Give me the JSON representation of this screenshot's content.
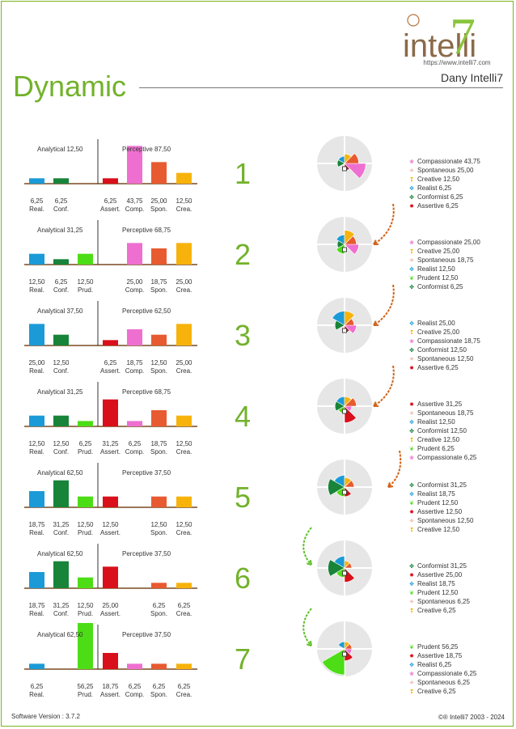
{
  "header": {
    "title": "Dynamic",
    "user": "Dany Intelli7",
    "logo_text": "intelli",
    "logo_seven": "7",
    "url": "https://www.intelli7.com"
  },
  "footer": {
    "version": "Software Version : 3.7.2",
    "copyright": "©® Intelli7 2003 - 2024"
  },
  "colors": {
    "Realist": "#1a9bd7",
    "Conformist": "#17843a",
    "Prudent": "#4ddd16",
    "Assertive": "#d90f1b",
    "Compassionate": "#ef6fd0",
    "Spontaneous": "#e85a30",
    "Creative": "#f7b30c",
    "accent": "#72b22b",
    "arrow_orange": "#d0631a",
    "arrow_green": "#5fbf26"
  },
  "icons": {
    "Realist": "realist-icon",
    "Conformist": "conformist-icon",
    "Prudent": "prudent-icon",
    "Assertive": "assertive-icon",
    "Compassionate": "compassionate-icon",
    "Spontaneous": "spontaneous-icon",
    "Creative": "creative-icon"
  },
  "chart_data": [
    {
      "step": "1",
      "type": "bar",
      "analytical": "Analytical 12,50",
      "perceptive": "Perceptive 87,50",
      "bars": [
        {
          "t": "Realist",
          "lbl": "Real.",
          "v": 6.25,
          "txt": "6,25"
        },
        {
          "t": "Conformist",
          "lbl": "Conf.",
          "v": 6.25,
          "txt": "6,25"
        },
        {
          "t": "Assertive",
          "lbl": "Assert.",
          "v": 6.25,
          "txt": "6,25"
        },
        {
          "t": "Compassionate",
          "lbl": "Comp.",
          "v": 43.75,
          "txt": "43,75"
        },
        {
          "t": "Spontaneous",
          "lbl": "Spon.",
          "v": 25.0,
          "txt": "25,00"
        },
        {
          "t": "Creative",
          "lbl": "Crea.",
          "v": 12.5,
          "txt": "12,50"
        }
      ],
      "legend": [
        {
          "t": "Compassionate",
          "text": "Compassionate 43,75"
        },
        {
          "t": "Spontaneous",
          "text": "Spontaneous 25,00"
        },
        {
          "t": "Creative",
          "text": "Creative 12,50"
        },
        {
          "t": "Realist",
          "text": "Realist 6,25"
        },
        {
          "t": "Conformist",
          "text": "Conformist 6,25"
        },
        {
          "t": "Assertive",
          "text": "Assertive 6,25"
        }
      ]
    },
    {
      "step": "2",
      "type": "bar",
      "analytical": "Analytical 31,25",
      "perceptive": "Perceptive 68,75",
      "bars": [
        {
          "t": "Realist",
          "lbl": "Real.",
          "v": 12.5,
          "txt": "12,50"
        },
        {
          "t": "Conformist",
          "lbl": "Conf.",
          "v": 6.25,
          "txt": "6,25"
        },
        {
          "t": "Prudent",
          "lbl": "Prud.",
          "v": 12.5,
          "txt": "12,50"
        },
        {
          "t": "Compassionate",
          "lbl": "Comp.",
          "v": 25.0,
          "txt": "25,00"
        },
        {
          "t": "Spontaneous",
          "lbl": "Spon.",
          "v": 18.75,
          "txt": "18,75"
        },
        {
          "t": "Creative",
          "lbl": "Crea.",
          "v": 25.0,
          "txt": "25,00"
        }
      ],
      "legend": [
        {
          "t": "Compassionate",
          "text": "Compassionate 25,00"
        },
        {
          "t": "Creative",
          "text": "Creative 25,00"
        },
        {
          "t": "Spontaneous",
          "text": "Spontaneous 18,75"
        },
        {
          "t": "Realist",
          "text": "Realist 12,50"
        },
        {
          "t": "Prudent",
          "text": "Prudent 12,50"
        },
        {
          "t": "Conformist",
          "text": "Conformist 6,25"
        }
      ]
    },
    {
      "step": "3",
      "type": "bar",
      "analytical": "Analytical 37,50",
      "perceptive": "Perceptive 62,50",
      "bars": [
        {
          "t": "Realist",
          "lbl": "Real.",
          "v": 25.0,
          "txt": "25,00"
        },
        {
          "t": "Conformist",
          "lbl": "Conf.",
          "v": 12.5,
          "txt": "12,50"
        },
        {
          "t": "Assertive",
          "lbl": "Assert.",
          "v": 6.25,
          "txt": "6,25"
        },
        {
          "t": "Compassionate",
          "lbl": "Comp.",
          "v": 18.75,
          "txt": "18,75"
        },
        {
          "t": "Spontaneous",
          "lbl": "Spon.",
          "v": 12.5,
          "txt": "12,50"
        },
        {
          "t": "Creative",
          "lbl": "Crea.",
          "v": 25.0,
          "txt": "25,00"
        }
      ],
      "legend": [
        {
          "t": "Realist",
          "text": "Realist 25,00"
        },
        {
          "t": "Creative",
          "text": "Creative 25,00"
        },
        {
          "t": "Compassionate",
          "text": "Compassionate 18,75"
        },
        {
          "t": "Conformist",
          "text": "Conformist 12,50"
        },
        {
          "t": "Spontaneous",
          "text": "Spontaneous 12,50"
        },
        {
          "t": "Assertive",
          "text": "Assertive 6,25"
        }
      ]
    },
    {
      "step": "4",
      "type": "bar",
      "analytical": "Analytical 31,25",
      "perceptive": "Perceptive 68,75",
      "bars": [
        {
          "t": "Realist",
          "lbl": "Real.",
          "v": 12.5,
          "txt": "12,50"
        },
        {
          "t": "Conformist",
          "lbl": "Conf.",
          "v": 12.5,
          "txt": "12,50"
        },
        {
          "t": "Prudent",
          "lbl": "Prud.",
          "v": 6.25,
          "txt": "6,25"
        },
        {
          "t": "Assertive",
          "lbl": "Assert.",
          "v": 31.25,
          "txt": "31,25"
        },
        {
          "t": "Compassionate",
          "lbl": "Comp.",
          "v": 6.25,
          "txt": "6,25"
        },
        {
          "t": "Spontaneous",
          "lbl": "Spon.",
          "v": 18.75,
          "txt": "18,75"
        },
        {
          "t": "Creative",
          "lbl": "Crea.",
          "v": 12.5,
          "txt": "12,50"
        }
      ],
      "legend": [
        {
          "t": "Assertive",
          "text": "Assertive 31,25"
        },
        {
          "t": "Spontaneous",
          "text": "Spontaneous 18,75"
        },
        {
          "t": "Realist",
          "text": "Realist 12,50"
        },
        {
          "t": "Conformist",
          "text": "Conformist 12,50"
        },
        {
          "t": "Creative",
          "text": "Creative 12,50"
        },
        {
          "t": "Prudent",
          "text": "Prudent 6,25"
        },
        {
          "t": "Compassionate",
          "text": "Compassionate 6,25"
        }
      ]
    },
    {
      "step": "5",
      "type": "bar",
      "analytical": "Analytical 62,50",
      "perceptive": "Perceptive 37,50",
      "bars": [
        {
          "t": "Realist",
          "lbl": "Real.",
          "v": 18.75,
          "txt": "18,75"
        },
        {
          "t": "Conformist",
          "lbl": "Conf.",
          "v": 31.25,
          "txt": "31,25"
        },
        {
          "t": "Prudent",
          "lbl": "Prud.",
          "v": 12.5,
          "txt": "12,50"
        },
        {
          "t": "Assertive",
          "lbl": "Assert.",
          "v": 12.5,
          "txt": "12,50"
        },
        {
          "t": "Spontaneous",
          "lbl": "Spon.",
          "v": 12.5,
          "txt": "12,50"
        },
        {
          "t": "Creative",
          "lbl": "Crea.",
          "v": 12.5,
          "txt": "12,50"
        }
      ],
      "legend": [
        {
          "t": "Conformist",
          "text": "Conformist 31,25"
        },
        {
          "t": "Realist",
          "text": "Realist 18,75"
        },
        {
          "t": "Prudent",
          "text": "Prudent 12,50"
        },
        {
          "t": "Assertive",
          "text": "Assertive 12,50"
        },
        {
          "t": "Spontaneous",
          "text": "Spontaneous 12,50"
        },
        {
          "t": "Creative",
          "text": "Creative 12,50"
        }
      ]
    },
    {
      "step": "6",
      "type": "bar",
      "analytical": "Analytical 62,50",
      "perceptive": "Perceptive 37,50",
      "bars": [
        {
          "t": "Realist",
          "lbl": "Real.",
          "v": 18.75,
          "txt": "18,75"
        },
        {
          "t": "Conformist",
          "lbl": "Conf.",
          "v": 31.25,
          "txt": "31,25"
        },
        {
          "t": "Prudent",
          "lbl": "Prud.",
          "v": 12.5,
          "txt": "12,50"
        },
        {
          "t": "Assertive",
          "lbl": "Assert.",
          "v": 25.0,
          "txt": "25,00"
        },
        {
          "t": "Spontaneous",
          "lbl": "Spon.",
          "v": 6.25,
          "txt": "6,25"
        },
        {
          "t": "Creative",
          "lbl": "Crea.",
          "v": 6.25,
          "txt": "6,25"
        }
      ],
      "legend": [
        {
          "t": "Conformist",
          "text": "Conformist 31,25"
        },
        {
          "t": "Assertive",
          "text": "Assertive 25,00"
        },
        {
          "t": "Realist",
          "text": "Realist 18,75"
        },
        {
          "t": "Prudent",
          "text": "Prudent 12,50"
        },
        {
          "t": "Spontaneous",
          "text": "Spontaneous 6,25"
        },
        {
          "t": "Creative",
          "text": "Creative 6,25"
        }
      ]
    },
    {
      "step": "7",
      "type": "bar",
      "analytical": "Analytical 62,50",
      "perceptive": "Perceptive 37,50",
      "bars": [
        {
          "t": "Realist",
          "lbl": "Real.",
          "v": 6.25,
          "txt": "6,25"
        },
        {
          "t": "Prudent",
          "lbl": "Prud.",
          "v": 56.25,
          "txt": "56,25"
        },
        {
          "t": "Assertive",
          "lbl": "Assert.",
          "v": 18.75,
          "txt": "18,75"
        },
        {
          "t": "Compassionate",
          "lbl": "Comp.",
          "v": 6.25,
          "txt": "6,25"
        },
        {
          "t": "Spontaneous",
          "lbl": "Spon.",
          "v": 6.25,
          "txt": "6,25"
        },
        {
          "t": "Creative",
          "lbl": "Crea.",
          "v": 6.25,
          "txt": "6,25"
        }
      ],
      "legend": [
        {
          "t": "Prudent",
          "text": "Prudent 56,25"
        },
        {
          "t": "Assertive",
          "text": "Assertive 18,75"
        },
        {
          "t": "Realist",
          "text": "Realist 6,25"
        },
        {
          "t": "Compassionate",
          "text": "Compassionate 6,25"
        },
        {
          "t": "Spontaneous",
          "text": "Spontaneous 6,25"
        },
        {
          "t": "Creative",
          "text": "Creative 6,25"
        }
      ]
    }
  ]
}
